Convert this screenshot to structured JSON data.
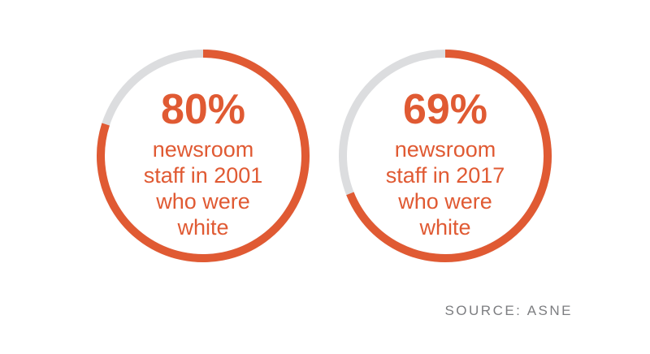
{
  "chart_data": [
    {
      "type": "pie",
      "style": "donut",
      "value_label": "80%",
      "values": [
        80,
        20
      ],
      "caption_lines": [
        "newsroom",
        "staff in 2001",
        "who were",
        "white"
      ],
      "colors": {
        "value": "#e05a33",
        "remainder": "#dcdddf"
      }
    },
    {
      "type": "pie",
      "style": "donut",
      "value_label": "69%",
      "values": [
        69,
        31
      ],
      "caption_lines": [
        "newsroom",
        "staff in 2017",
        "who were",
        "white"
      ],
      "colors": {
        "value": "#e05a33",
        "remainder": "#dcdddf"
      }
    }
  ],
  "source": "SOURCE: ASNE"
}
